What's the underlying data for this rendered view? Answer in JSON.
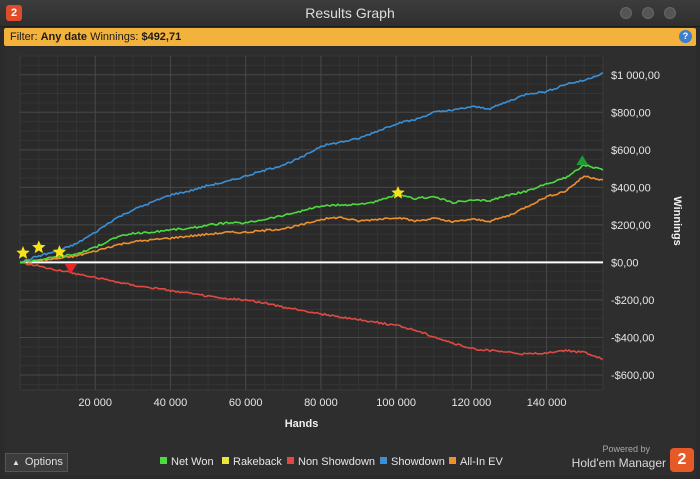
{
  "window": {
    "title": "Results Graph",
    "app_icon_glyph": "2"
  },
  "filter": {
    "filter_label": "Filter:",
    "filter_value": "Any date",
    "winnings_label": "Winnings:",
    "winnings_value": "$492,71",
    "help_glyph": "?"
  },
  "footer": {
    "options_label": "Options",
    "brand_powered": "Powered by",
    "brand_name": "Hold'em Manager",
    "brand_logo_glyph": "2"
  },
  "colors": {
    "net_won": "#4cdb3f",
    "rakeback": "#ece53a",
    "non_showdown": "#e04a42",
    "showdown": "#3b8fd4",
    "allin_ev": "#ef8f2e",
    "marker_star": "#f6e21c",
    "marker_up": "#1e9b34",
    "marker_down": "#e8262a"
  },
  "chart_data": {
    "type": "line",
    "xlabel": "Hands",
    "ylabel": "Winnings",
    "xlim": [
      0,
      155000
    ],
    "ylim": [
      -680,
      1100
    ],
    "x_ticks": [
      20000,
      40000,
      60000,
      80000,
      100000,
      120000,
      140000
    ],
    "x_tick_labels": [
      "20 000",
      "40 000",
      "60 000",
      "80 000",
      "100 000",
      "120 000",
      "140 000"
    ],
    "y_ticks": [
      1000,
      800,
      600,
      400,
      200,
      0,
      -200,
      -400,
      -600
    ],
    "y_tick_labels": [
      "$1 000,00",
      "$800,00",
      "$600,00",
      "$400,00",
      "$200,00",
      "$0,00",
      "-$200,00",
      "-$400,00",
      "-$600,00"
    ],
    "grid": true,
    "legend_position": "bottom",
    "series": [
      {
        "name": "Net Won",
        "key": "net_won",
        "x": [
          0,
          5000,
          10000,
          15000,
          20000,
          25000,
          30000,
          35000,
          40000,
          45000,
          50000,
          55000,
          60000,
          65000,
          70000,
          75000,
          80000,
          85000,
          90000,
          95000,
          100000,
          105000,
          110000,
          115000,
          120000,
          125000,
          130000,
          135000,
          140000,
          145000,
          150000,
          155000
        ],
        "y": [
          0,
          15,
          30,
          45,
          80,
          130,
          155,
          160,
          175,
          180,
          200,
          210,
          210,
          230,
          250,
          275,
          300,
          305,
          310,
          325,
          360,
          340,
          350,
          320,
          330,
          330,
          360,
          380,
          420,
          450,
          520,
          492
        ]
      },
      {
        "name": "Rakeback",
        "key": "rakeback",
        "x": [
          0,
          155000
        ],
        "y": [
          0,
          0
        ]
      },
      {
        "name": "Non Showdown",
        "key": "non_showdown",
        "x": [
          0,
          5000,
          10000,
          15000,
          20000,
          25000,
          30000,
          35000,
          40000,
          45000,
          50000,
          55000,
          60000,
          65000,
          70000,
          75000,
          80000,
          85000,
          90000,
          95000,
          100000,
          105000,
          110000,
          115000,
          120000,
          125000,
          130000,
          135000,
          140000,
          145000,
          150000,
          155000
        ],
        "y": [
          0,
          -20,
          -40,
          -60,
          -80,
          -100,
          -120,
          -135,
          -150,
          -165,
          -180,
          -195,
          -200,
          -215,
          -240,
          -255,
          -275,
          -290,
          -305,
          -320,
          -335,
          -360,
          -395,
          -430,
          -460,
          -470,
          -480,
          -490,
          -480,
          -470,
          -480,
          -515
        ]
      },
      {
        "name": "Showdown",
        "key": "showdown",
        "x": [
          0,
          5000,
          10000,
          15000,
          20000,
          25000,
          30000,
          35000,
          40000,
          45000,
          50000,
          55000,
          60000,
          65000,
          70000,
          75000,
          80000,
          85000,
          90000,
          95000,
          100000,
          105000,
          110000,
          115000,
          120000,
          125000,
          130000,
          135000,
          140000,
          145000,
          150000,
          155000
        ],
        "y": [
          0,
          35,
          60,
          100,
          160,
          230,
          280,
          320,
          360,
          380,
          410,
          430,
          460,
          490,
          520,
          560,
          620,
          640,
          660,
          700,
          740,
          760,
          800,
          810,
          830,
          820,
          860,
          900,
          910,
          950,
          970,
          1010
        ]
      },
      {
        "name": "All-In EV",
        "key": "allin_ev",
        "x": [
          0,
          5000,
          10000,
          15000,
          20000,
          25000,
          30000,
          35000,
          40000,
          45000,
          50000,
          55000,
          60000,
          65000,
          70000,
          75000,
          80000,
          85000,
          90000,
          95000,
          100000,
          105000,
          110000,
          115000,
          120000,
          125000,
          130000,
          135000,
          140000,
          145000,
          150000,
          155000
        ],
        "y": [
          0,
          10,
          20,
          35,
          60,
          90,
          110,
          120,
          130,
          140,
          150,
          160,
          160,
          170,
          180,
          200,
          230,
          240,
          220,
          230,
          240,
          220,
          235,
          215,
          230,
          220,
          250,
          300,
          350,
          380,
          460,
          440
        ]
      }
    ],
    "markers": [
      {
        "type": "star",
        "x": 800,
        "y": 50
      },
      {
        "type": "star",
        "x": 5000,
        "y": 80
      },
      {
        "type": "star",
        "x": 10500,
        "y": 55
      },
      {
        "type": "star",
        "x": 100500,
        "y": 370
      },
      {
        "type": "triangle-down",
        "x": 13500,
        "y": -35
      },
      {
        "type": "triangle-up",
        "x": 149500,
        "y": 545
      }
    ]
  }
}
